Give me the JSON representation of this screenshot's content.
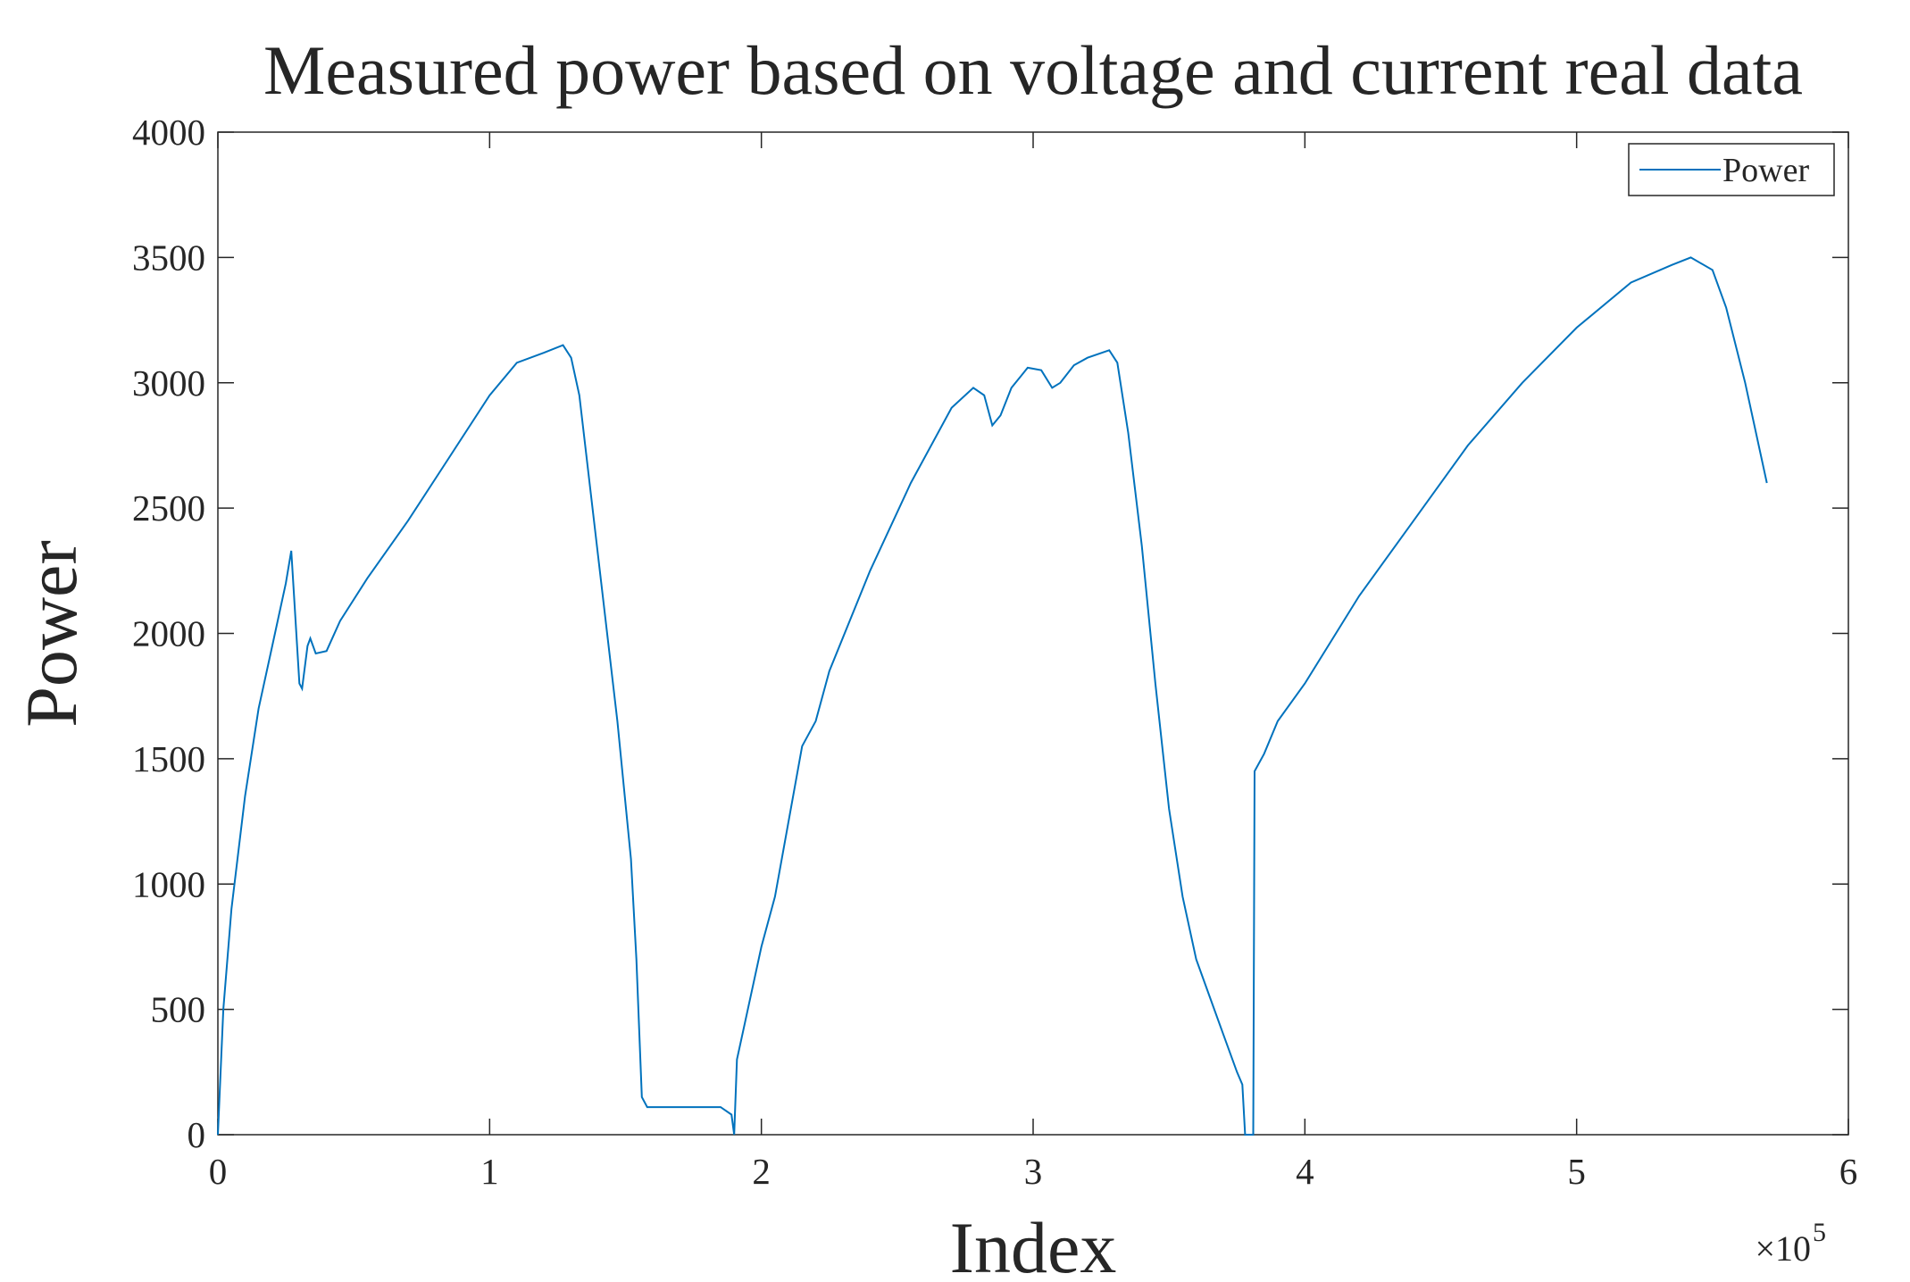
{
  "chart_data": {
    "type": "line",
    "title": "Measured power based on voltage and current real data",
    "x_label": "Index",
    "y_label": "Power",
    "x_multiplier": {
      "base": "×10",
      "exponent": "5"
    },
    "xlim": [
      0,
      600000
    ],
    "xticks": [
      0,
      {
        "value": 100000,
        "label": "1"
      },
      {
        "value": 200000,
        "label": "2"
      },
      {
        "value": 300000,
        "label": "3"
      },
      {
        "value": 400000,
        "label": "4"
      },
      {
        "value": 500000,
        "label": "5"
      },
      {
        "value": 600000,
        "label": "6"
      }
    ],
    "ylim": [
      0,
      4000
    ],
    "yticks": [
      0,
      500,
      1000,
      1500,
      2000,
      2500,
      3000,
      3500,
      4000
    ],
    "grid": false,
    "legend": "top-right",
    "x": [
      0,
      2000,
      5000,
      10000,
      15000,
      20000,
      25000,
      27000,
      30000,
      31000,
      33000,
      34000,
      36000,
      40000,
      45000,
      55000,
      70000,
      85000,
      100000,
      110000,
      120000,
      127000,
      130000,
      133000,
      140000,
      147000,
      152000,
      154000,
      156000,
      158000,
      165000,
      175000,
      185000,
      189000,
      190000,
      191000,
      195000,
      200000,
      205000,
      210000,
      215000,
      220000,
      225000,
      240000,
      255000,
      270000,
      278000,
      282000,
      285000,
      288000,
      292000,
      298000,
      303000,
      307000,
      310000,
      315000,
      320000,
      328000,
      331000,
      335000,
      340000,
      345000,
      350000,
      355000,
      360000,
      365000,
      370000,
      375000,
      377000,
      378000,
      381000,
      381500,
      385000,
      390000,
      400000,
      420000,
      440000,
      460000,
      480000,
      500000,
      520000,
      535000,
      542000,
      550000,
      555000,
      562000,
      570000
    ],
    "series": [
      {
        "name": "Power",
        "color": "#0072bd",
        "values": [
          0,
          500,
          900,
          1350,
          1700,
          1950,
          2200,
          2330,
          1800,
          1780,
          1950,
          1980,
          1920,
          1930,
          2050,
          2220,
          2450,
          2700,
          2950,
          3080,
          3120,
          3150,
          3100,
          2950,
          2300,
          1650,
          1100,
          700,
          150,
          110,
          110,
          110,
          110,
          80,
          0,
          300,
          500,
          750,
          950,
          1250,
          1550,
          1650,
          1850,
          2250,
          2600,
          2900,
          2980,
          2950,
          2830,
          2870,
          2980,
          3060,
          3050,
          2980,
          3000,
          3070,
          3100,
          3130,
          3080,
          2800,
          2350,
          1800,
          1300,
          950,
          700,
          550,
          400,
          250,
          200,
          0,
          0,
          1450,
          1520,
          1650,
          1800,
          2150,
          2450,
          2750,
          3000,
          3220,
          3400,
          3470,
          3500,
          3450,
          3300,
          3000,
          2600
        ]
      }
    ]
  }
}
